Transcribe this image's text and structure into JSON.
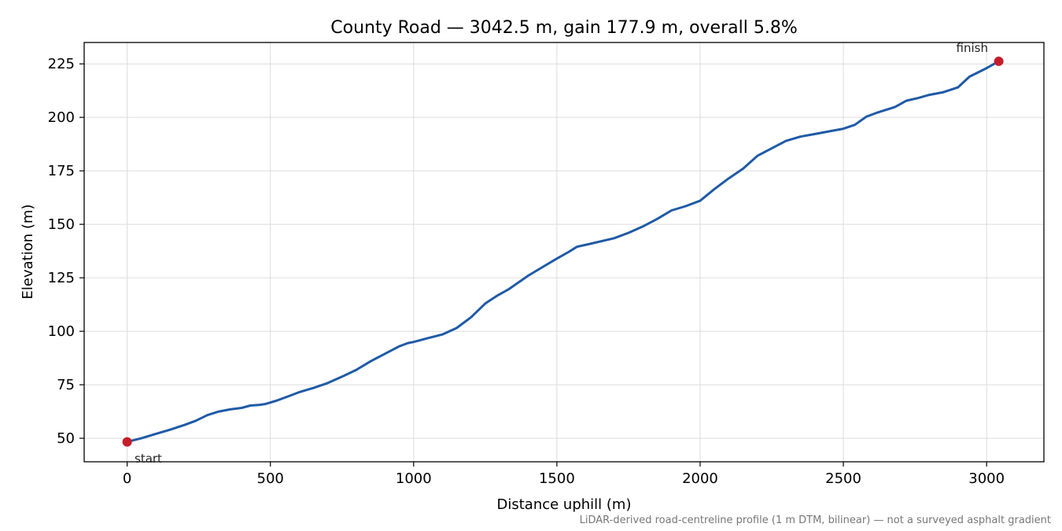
{
  "chart_data": {
    "type": "line",
    "title": "County Road — 3042.5 m, gain 177.9 m, overall 5.8%",
    "xlabel": "Distance uphill (m)",
    "ylabel": "Elevation (m)",
    "xlim": [
      -150,
      3200
    ],
    "ylim": [
      39,
      235
    ],
    "xticks": [
      0,
      500,
      1000,
      1500,
      2000,
      2500,
      3000
    ],
    "xtick_labels": [
      "0",
      "500",
      "1000",
      "1500",
      "2000",
      "2500",
      "3000"
    ],
    "yticks": [
      50,
      75,
      100,
      125,
      150,
      175,
      200,
      225
    ],
    "ytick_labels": [
      "50",
      "75",
      "100",
      "125",
      "150",
      "175",
      "200",
      "225"
    ],
    "grid": true,
    "line_color": "#1f5aa6",
    "marker_color": "#c41e2a",
    "series": [
      {
        "x": [
          0,
          50,
          100,
          150,
          200,
          240,
          280,
          320,
          360,
          400,
          430,
          460,
          480,
          520,
          560,
          600,
          650,
          700,
          750,
          800,
          850,
          900,
          950,
          980,
          1000,
          1050,
          1100,
          1150,
          1200,
          1250,
          1290,
          1330,
          1400,
          1450,
          1500,
          1540,
          1570,
          1620,
          1700,
          1750,
          1800,
          1850,
          1900,
          1950,
          2000,
          2050,
          2100,
          2150,
          2200,
          2250,
          2300,
          2350,
          2400,
          2500,
          2540,
          2580,
          2620,
          2680,
          2720,
          2760,
          2800,
          2850,
          2900,
          2940,
          3000,
          3042.5
        ],
        "y": [
          48.3,
          50,
          52,
          54,
          56.2,
          58.2,
          60.8,
          62.5,
          63.5,
          64.2,
          65.3,
          65.6,
          65.9,
          67.5,
          69.5,
          71.5,
          73.5,
          75.8,
          78.8,
          82,
          86,
          89.5,
          93,
          94.5,
          95,
          96.8,
          98.5,
          101.5,
          106.5,
          113,
          116.5,
          119.5,
          126,
          130,
          134,
          137,
          139.5,
          141,
          143.5,
          146,
          149,
          152.5,
          156.5,
          158.5,
          161,
          166.5,
          171.5,
          176,
          182,
          185.5,
          189,
          191,
          192.2,
          194.7,
          196.5,
          200.3,
          202.3,
          204.8,
          207.8,
          209,
          210.5,
          211.8,
          214,
          219,
          223,
          226.2
        ]
      }
    ],
    "annotations": [
      {
        "text": "start",
        "x": 0,
        "y": 48.3
      },
      {
        "text": "finish",
        "x": 3042.5,
        "y": 226.2
      }
    ],
    "footnote": "LiDAR-derived road-centreline profile (1 m DTM, bilinear) — not a surveyed asphalt gradient"
  }
}
